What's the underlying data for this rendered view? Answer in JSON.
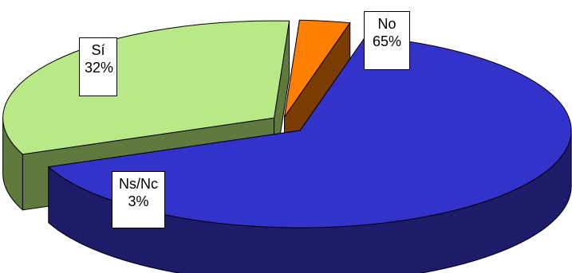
{
  "chart_data": {
    "type": "pie",
    "style": "3d-exploded",
    "slices": [
      {
        "label": "No",
        "value": 65,
        "value_label": "65%",
        "color": "#3333cc",
        "side_color": "#1c1c6b"
      },
      {
        "label": "Sí",
        "value": 32,
        "value_label": "32%",
        "color": "#b8e986",
        "side_color": "#5f7a3c"
      },
      {
        "label": "Ns/Nc",
        "value": 3,
        "value_label": "3%",
        "color": "#ff8000",
        "side_color": "#7a3c00"
      }
    ],
    "legend": "none",
    "title": ""
  }
}
